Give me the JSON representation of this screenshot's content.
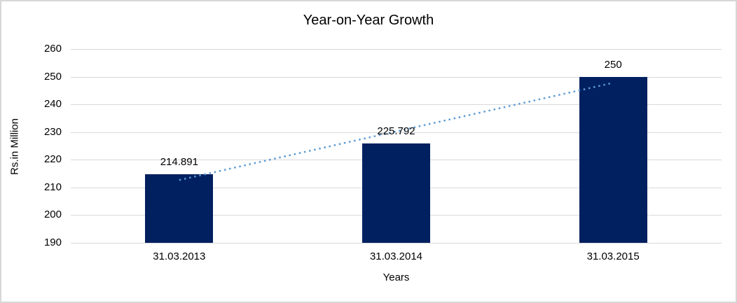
{
  "chart": {
    "frame_border_color": "#d7d7d7",
    "background_color": "#ffffff",
    "text_color": "#000000"
  },
  "chart_data": {
    "type": "bar",
    "title": "Year-on-Year Growth",
    "xlabel": "Years",
    "ylabel": "Rs.in Million",
    "categories": [
      "31.03.2013",
      "31.03.2014",
      "31.03.2015"
    ],
    "values": [
      214.891,
      225.792,
      250
    ],
    "data_labels": [
      "214.891",
      "225.792",
      "250"
    ],
    "ylim": [
      190,
      260
    ],
    "yticks": [
      190,
      200,
      210,
      220,
      230,
      240,
      250,
      260
    ],
    "grid": true,
    "legend": false,
    "bar_color": "#002060",
    "gridline_color": "#d9d9d9",
    "trendline": {
      "type": "linear",
      "style": "dotted",
      "color": "#5b9bd5"
    }
  }
}
